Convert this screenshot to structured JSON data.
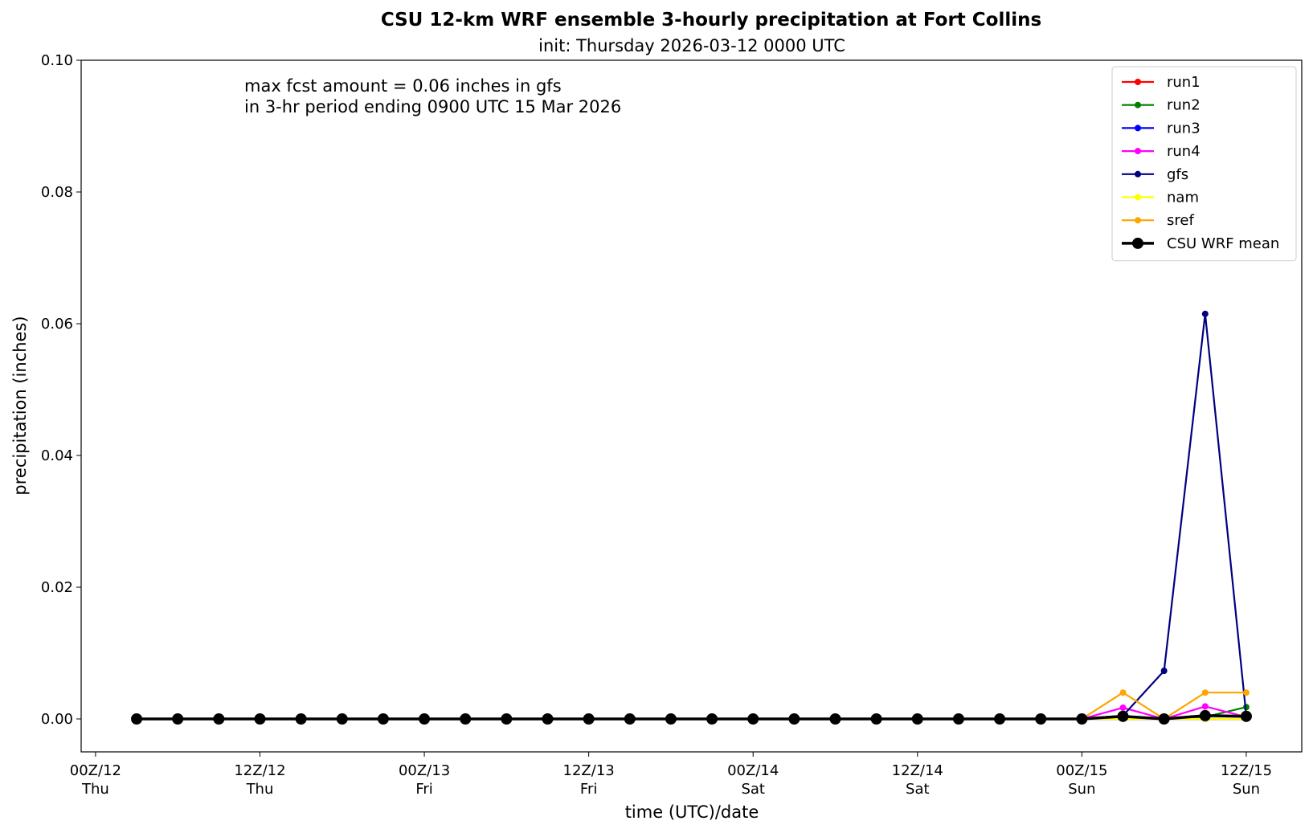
{
  "chart_data": {
    "type": "line",
    "title": "CSU 12-km WRF ensemble 3-hourly precipitation at Fort Collins",
    "subtitle": "init: Thursday 2026-03-12 0000 UTC",
    "annotation": [
      "max fcst amount = 0.06 inches in gfs",
      "in 3-hr period ending 0900 UTC 15 Mar 2026"
    ],
    "x_label": "time (UTC)/date",
    "y_label": "precipitation (inches)",
    "x": [
      3,
      6,
      9,
      12,
      15,
      18,
      21,
      24,
      27,
      30,
      33,
      36,
      39,
      42,
      45,
      48,
      51,
      54,
      57,
      60,
      63,
      66,
      69,
      72,
      75,
      78,
      81,
      84
    ],
    "xlim": [
      -1.05,
      88.05
    ],
    "xticks": [
      {
        "value": 0,
        "label": "00Z/12"
      },
      {
        "value": 12,
        "label": "12Z/12"
      },
      {
        "value": 24,
        "label": "00Z/13"
      },
      {
        "value": 36,
        "label": "12Z/13"
      },
      {
        "value": 48,
        "label": "00Z/14"
      },
      {
        "value": 60,
        "label": "12Z/14"
      },
      {
        "value": 72,
        "label": "00Z/15"
      },
      {
        "value": 84,
        "label": "12Z/15"
      }
    ],
    "xtick_days": [
      "Thu",
      "Thu",
      "Fri",
      "Fri",
      "Sat",
      "Sat",
      "Sun",
      "Sun"
    ],
    "ylim": [
      -0.005,
      0.1
    ],
    "yticks": [
      {
        "value": 0,
        "label": "0.00"
      },
      {
        "value": 0.02,
        "label": "0.02"
      },
      {
        "value": 0.04,
        "label": "0.04"
      },
      {
        "value": 0.06,
        "label": "0.06"
      },
      {
        "value": 0.08,
        "label": "0.08"
      },
      {
        "value": 0.1,
        "label": "0.10"
      }
    ],
    "legend": "upper right",
    "series": [
      {
        "name": "run1",
        "color": "#ff0000",
        "values": [
          0,
          0,
          0,
          0,
          0,
          0,
          0,
          0,
          0,
          0,
          0,
          0,
          0,
          0,
          0,
          0,
          0,
          0,
          0,
          0,
          0,
          0,
          0,
          0,
          0,
          0,
          0,
          0
        ]
      },
      {
        "name": "run2",
        "color": "#008000",
        "values": [
          0,
          0,
          0,
          0,
          0,
          0,
          0,
          0,
          0,
          0,
          0,
          0,
          0,
          0,
          0,
          0,
          0,
          0,
          0,
          0,
          0,
          0,
          0,
          0,
          0.0002,
          0,
          0.0003,
          0.0018
        ]
      },
      {
        "name": "run3",
        "color": "#0000ff",
        "values": [
          0,
          0,
          0,
          0,
          0,
          0,
          0,
          0,
          0,
          0,
          0,
          0,
          0,
          0,
          0,
          0,
          0,
          0,
          0,
          0,
          0,
          0,
          0,
          0,
          0,
          0,
          0,
          0
        ]
      },
      {
        "name": "run4",
        "color": "#ff00ff",
        "values": [
          0,
          0,
          0,
          0,
          0,
          0,
          0,
          0,
          0,
          0,
          0,
          0,
          0,
          0,
          0,
          0,
          0,
          0,
          0,
          0,
          0,
          0,
          0,
          0,
          0.0017,
          0,
          0.0019,
          0.0003
        ]
      },
      {
        "name": "gfs",
        "color": "#000080",
        "values": [
          0,
          0,
          0,
          0,
          0,
          0,
          0,
          0,
          0,
          0,
          0,
          0,
          0,
          0,
          0,
          0,
          0,
          0,
          0,
          0,
          0,
          0,
          0,
          0,
          0.0005,
          0.0073,
          0.0615,
          0.0005
        ]
      },
      {
        "name": "nam",
        "color": "#ffff00",
        "values": [
          0,
          0,
          0,
          0,
          0,
          0,
          0,
          0,
          0,
          0,
          0,
          0,
          0,
          0,
          0,
          0,
          0,
          0,
          0,
          0,
          0,
          0,
          0,
          0,
          0,
          0,
          0,
          0
        ]
      },
      {
        "name": "sref",
        "color": "#ffa500",
        "values": [
          0,
          0,
          0,
          0,
          0,
          0,
          0,
          0,
          0,
          0,
          0,
          0,
          0,
          0,
          0,
          0,
          0,
          0,
          0,
          0,
          0,
          0,
          0,
          0,
          0.004,
          0,
          0.004,
          0.004
        ]
      },
      {
        "name": "CSU WRF mean",
        "color": "#000000",
        "values": [
          0,
          0,
          0,
          0,
          0,
          0,
          0,
          0,
          0,
          0,
          0,
          0,
          0,
          0,
          0,
          0,
          0,
          0,
          0,
          0,
          0,
          0,
          0,
          0,
          0.0004,
          0,
          0.0005,
          0.0004
        ]
      }
    ]
  }
}
